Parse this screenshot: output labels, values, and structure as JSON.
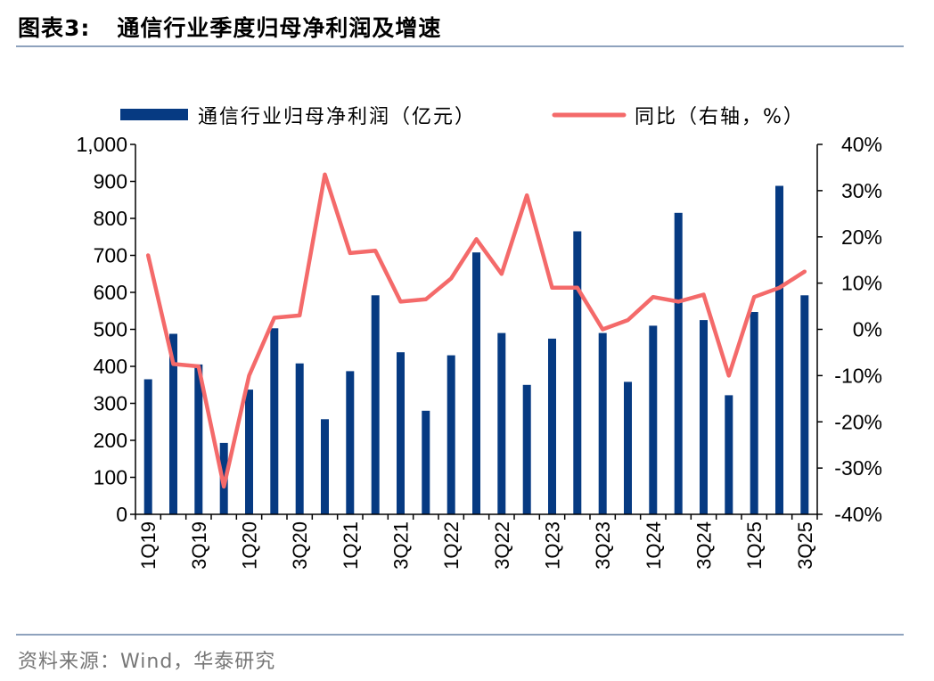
{
  "figure": {
    "label": "图表3:",
    "title": "通信行业季度归母净利润及增速",
    "source": "资料来源：Wind，华泰研究"
  },
  "colors": {
    "bar": "#063a82",
    "line": "#f46a6a",
    "rule": "#8ea2bd",
    "source_text": "#777777"
  },
  "chart_data": {
    "type": "bar+line",
    "categories": [
      "1Q19",
      "2Q19",
      "3Q19",
      "4Q19",
      "1Q20",
      "2Q20",
      "3Q20",
      "4Q20",
      "1Q21",
      "2Q21",
      "3Q21",
      "4Q21",
      "1Q22",
      "2Q22",
      "3Q22",
      "4Q22",
      "1Q23",
      "2Q23",
      "3Q23",
      "4Q23",
      "1Q24",
      "2Q24",
      "3Q24",
      "4Q24",
      "1Q25",
      "2Q25",
      "3Q25"
    ],
    "x_tick_labels": [
      "1Q19",
      "",
      "3Q19",
      "",
      "1Q20",
      "",
      "3Q20",
      "",
      "1Q21",
      "",
      "3Q21",
      "",
      "1Q22",
      "",
      "3Q22",
      "",
      "1Q23",
      "",
      "3Q23",
      "",
      "1Q24",
      "",
      "3Q24",
      "",
      "1Q25",
      "",
      "3Q25"
    ],
    "series": [
      {
        "name": "通信行业归母净利润（亿元）",
        "type": "bar",
        "axis": "left",
        "values": [
          365,
          488,
          405,
          193,
          337,
          503,
          408,
          257,
          387,
          592,
          438,
          280,
          430,
          708,
          490,
          350,
          475,
          765,
          490,
          358,
          510,
          815,
          525,
          322,
          547,
          888,
          592
        ]
      },
      {
        "name": "同比（右轴，%）",
        "type": "line",
        "axis": "right",
        "values": [
          16,
          -7.5,
          -8,
          -34,
          -10,
          2.5,
          3,
          33.5,
          16.5,
          17,
          6,
          6.5,
          11,
          19.5,
          12,
          29,
          9,
          9,
          0,
          2,
          7,
          6,
          7.5,
          -10,
          7,
          9,
          12.5
        ]
      }
    ],
    "left_axis": {
      "min": 0,
      "max": 1000,
      "step": 100,
      "tick_labels": [
        "0",
        "100",
        "200",
        "300",
        "400",
        "500",
        "600",
        "700",
        "800",
        "900",
        "1,000"
      ]
    },
    "right_axis": {
      "min": -40,
      "max": 40,
      "step": 10,
      "tick_labels": [
        "-40%",
        "-30%",
        "-20%",
        "-10%",
        "0%",
        "10%",
        "20%",
        "30%",
        "40%"
      ]
    },
    "legend_position": "top",
    "grid": false
  }
}
